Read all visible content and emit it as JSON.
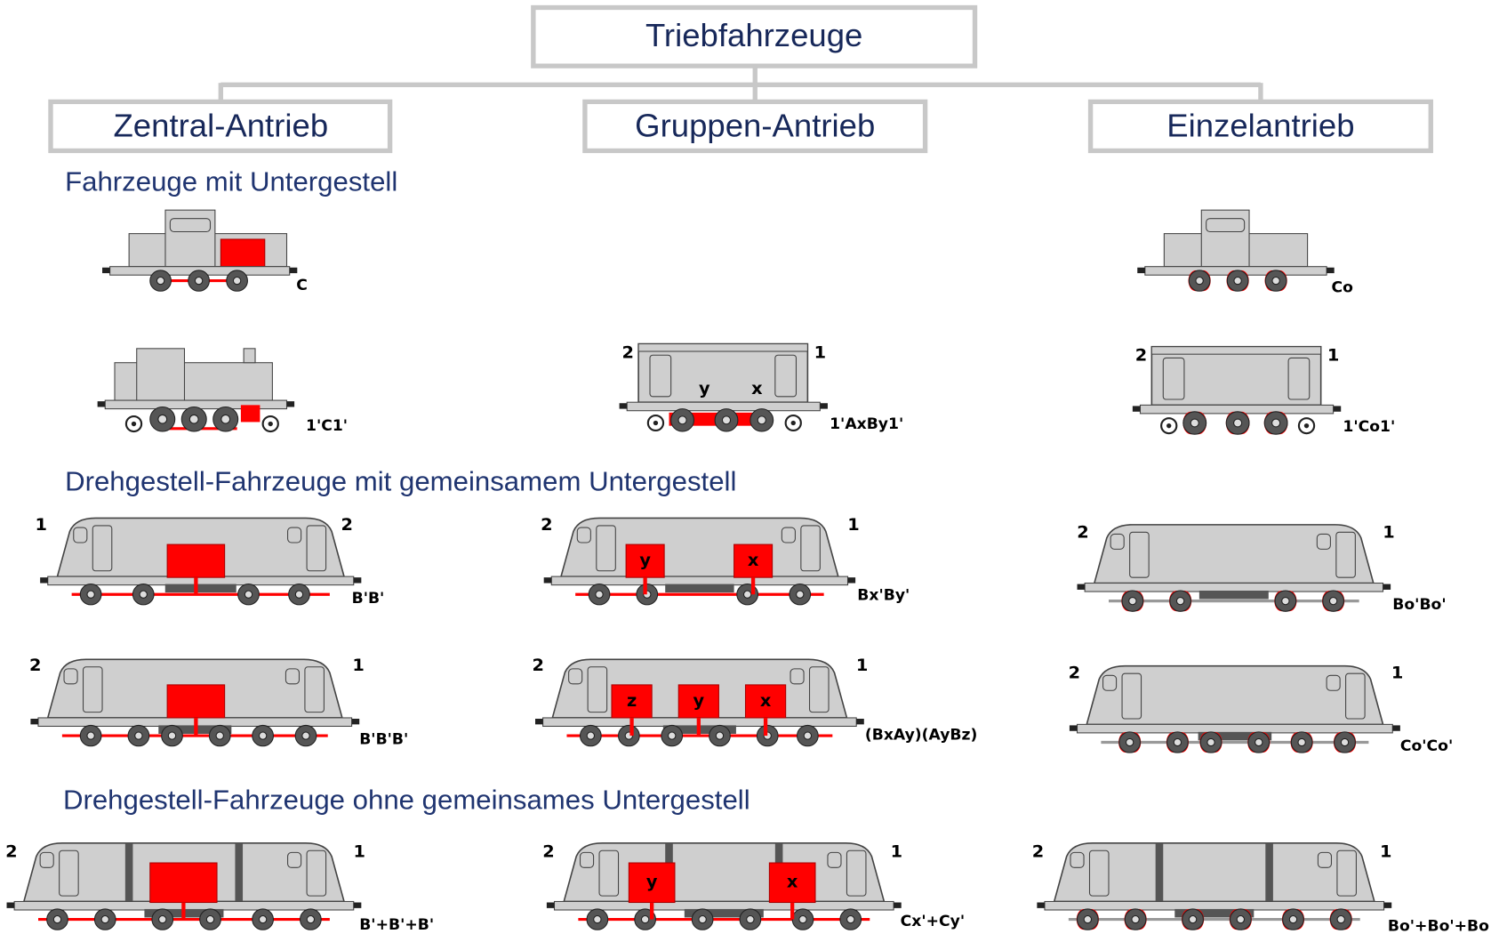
{
  "title": "Triebfahrzeuge",
  "columns": [
    "Zentral-Antrieb",
    "Gruppen-Antrieb",
    "Einzelantrieb"
  ],
  "sections": [
    "Fahrzeuge mit Untergestell",
    "Drehgestell-Fahrzeuge mit gemeinsamem Untergestell",
    "Drehgestell-Fahrzeuge ohne gemeinsames Untergestell"
  ],
  "vehicles": [
    {
      "code": "C"
    },
    {
      "code": "Co"
    },
    {
      "code": "1'C1'"
    },
    {
      "code": "1'AxBy1'",
      "ends": [
        "2",
        "1"
      ],
      "motors": [
        "y",
        "x"
      ]
    },
    {
      "code": "1'Co1'",
      "ends": [
        "2",
        "1"
      ]
    },
    {
      "code": "B'B'",
      "ends": [
        "1",
        "2"
      ]
    },
    {
      "code": "Bx'By'",
      "ends": [
        "2",
        "1"
      ],
      "motors": [
        "y",
        "x"
      ]
    },
    {
      "code": "Bo'Bo'",
      "ends": [
        "2",
        "1"
      ]
    },
    {
      "code": "B'B'B'",
      "ends": [
        "2",
        "1"
      ]
    },
    {
      "code": "(BxAy)(AyBz)",
      "ends": [
        "2",
        "1"
      ],
      "motors": [
        "z",
        "y",
        "x"
      ]
    },
    {
      "code": "Co'Co'",
      "ends": [
        "2",
        "1"
      ]
    },
    {
      "code": "B'+B'+B'",
      "ends": [
        "2",
        "1"
      ]
    },
    {
      "code": "Cx'+Cy'",
      "ends": [
        "2",
        "1"
      ],
      "motors": [
        "y",
        "x"
      ]
    },
    {
      "code": "Bo'+Bo'+Bo",
      "ends": [
        "2",
        "1"
      ]
    }
  ]
}
